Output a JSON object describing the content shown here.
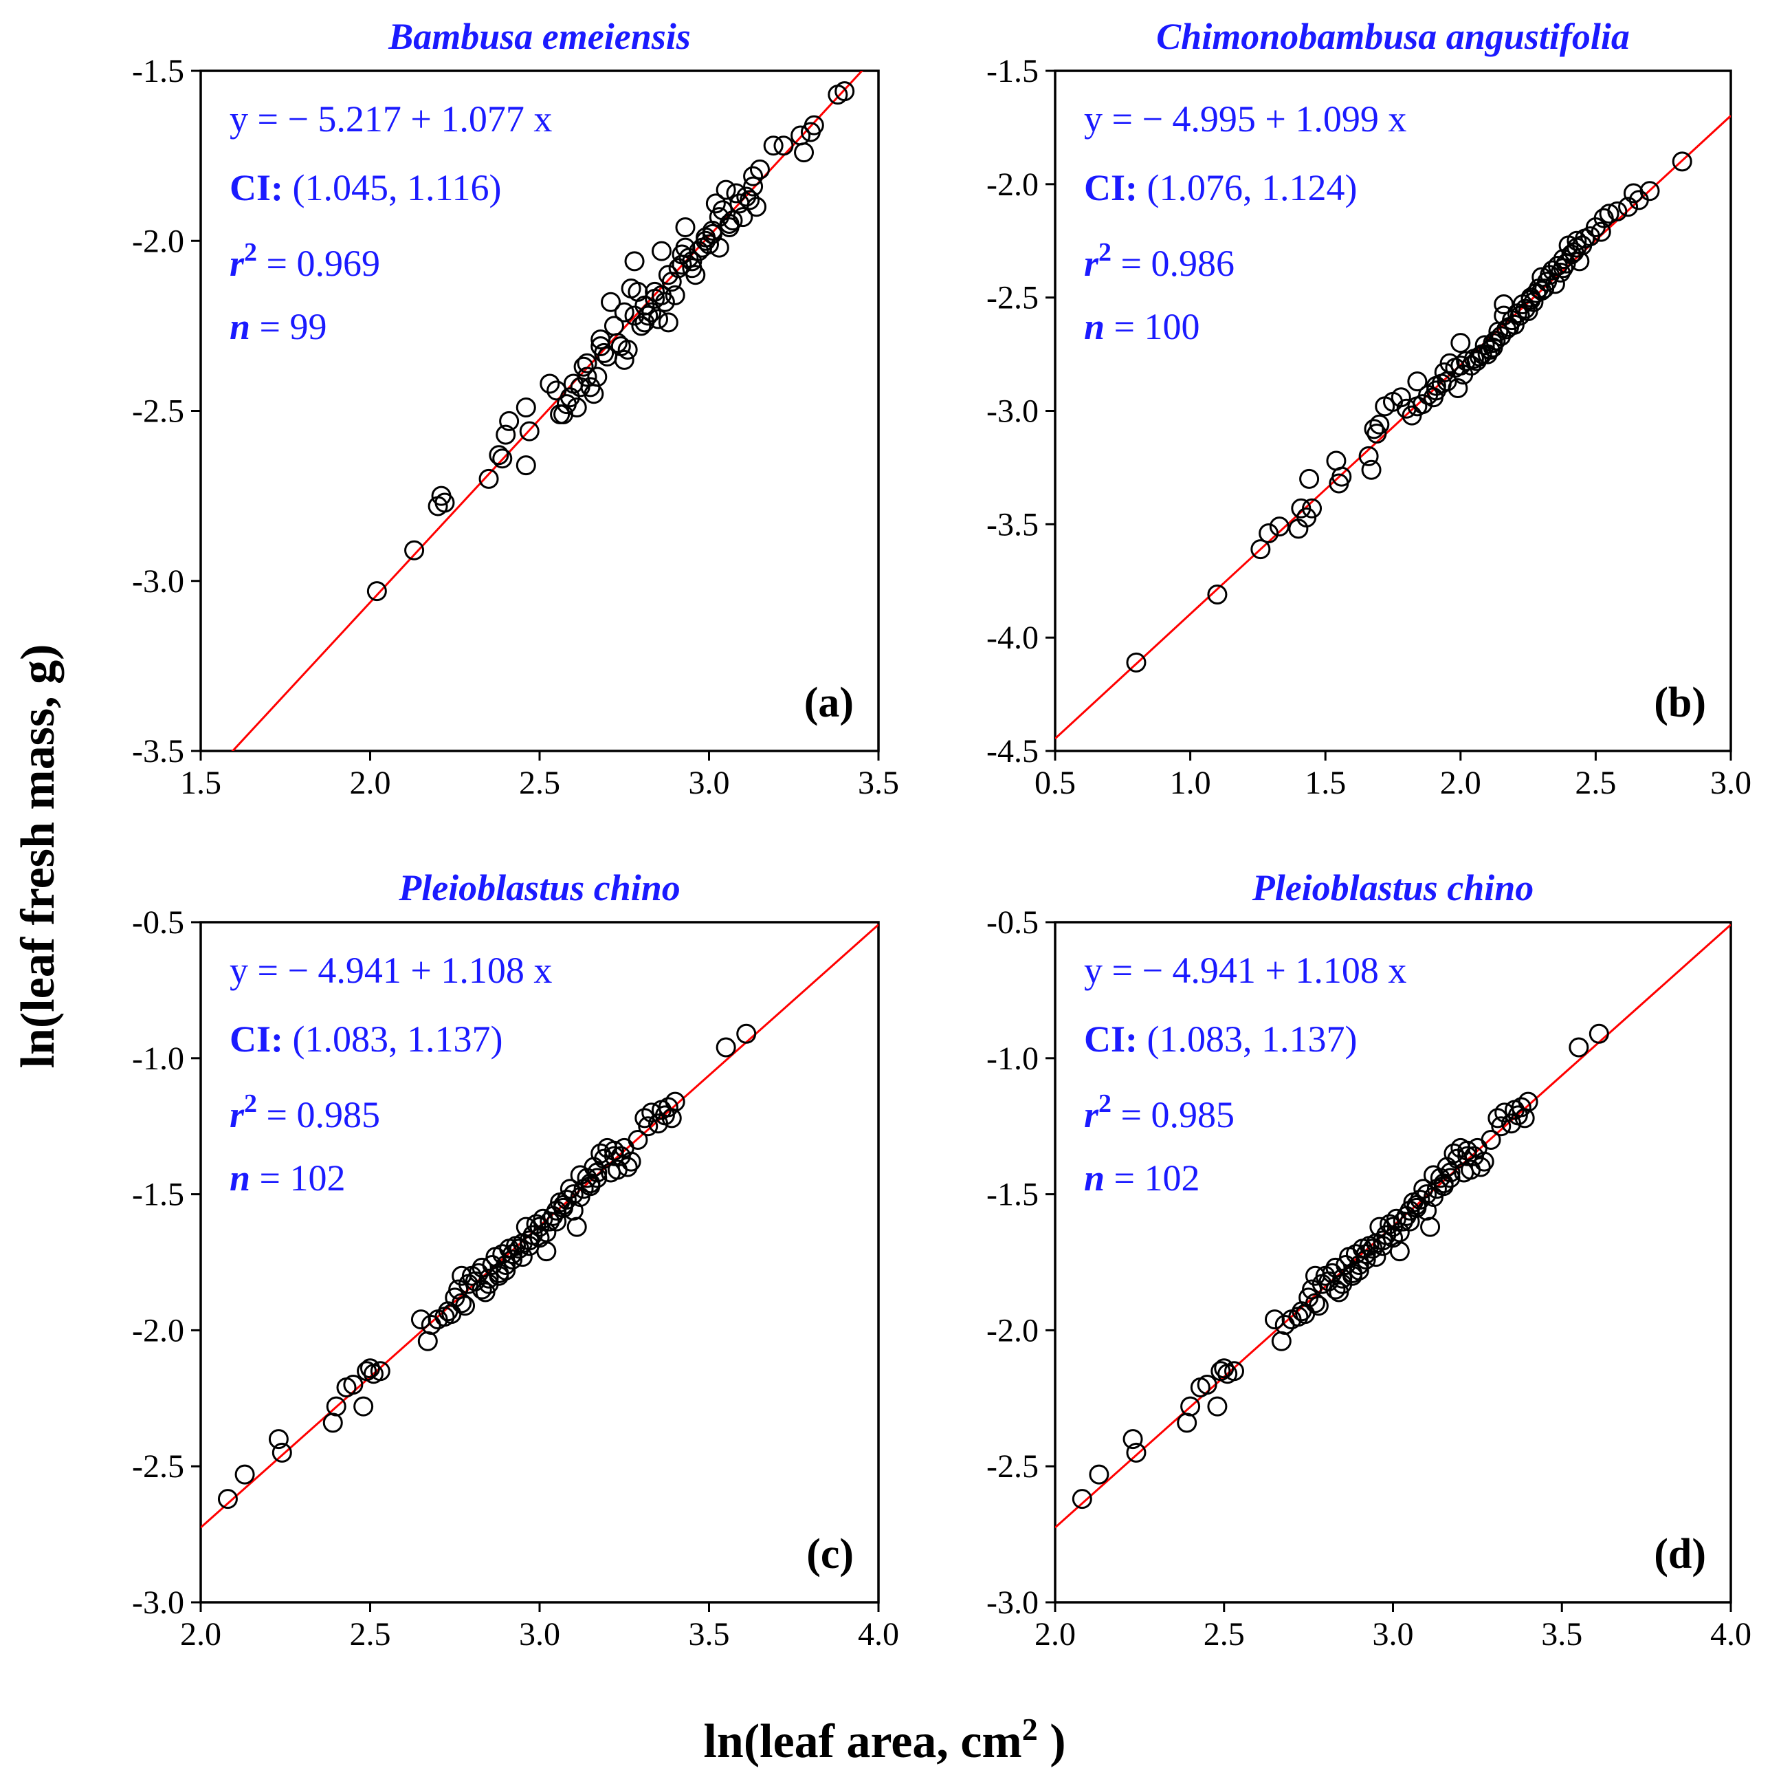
{
  "figure": {
    "ylabel": "ln(leaf fresh mass,  g)",
    "xlabel_main": "ln(leaf area,  cm",
    "xlabel_sup": "2",
    "xlabel_close": " )"
  },
  "chart_data": [
    {
      "type": "scatter",
      "tag": "(a)",
      "title": "Bambusa emeiensis",
      "xlim": [
        1.5,
        3.5
      ],
      "ylim": [
        -3.5,
        -1.5
      ],
      "xticks": [
        "1.5",
        "2.0",
        "2.5",
        "3.0",
        "3.5"
      ],
      "yticks": [
        "-3.5",
        "-3.0",
        "-2.5",
        "-2.0",
        "-1.5"
      ],
      "stats": {
        "eq": "y = − 5.217 + 1.077 x",
        "ci_label": "CI:",
        "ci": " (1.045, 1.116)",
        "r2_label": "r",
        "r2_sup": "2",
        "r2": " = 0.969",
        "n_label": "n",
        "n": " = 99"
      },
      "fit": {
        "intercept": -5.217,
        "slope": 1.077
      },
      "points": {
        "x": [
          2.02,
          2.13,
          2.2,
          2.21,
          2.22,
          2.35,
          2.38,
          2.39,
          2.4,
          2.41,
          2.46,
          2.46,
          2.47,
          2.53,
          2.55,
          2.56,
          2.57,
          2.58,
          2.59,
          2.6,
          2.61,
          2.62,
          2.63,
          2.64,
          2.65,
          2.66,
          2.67,
          2.68,
          2.69,
          2.7,
          2.72,
          2.73,
          2.74,
          2.75,
          2.76,
          2.77,
          2.78,
          2.79,
          2.8,
          2.81,
          2.82,
          2.83,
          2.84,
          2.85,
          2.86,
          2.87,
          2.88,
          2.89,
          2.9,
          2.91,
          2.92,
          2.93,
          2.94,
          2.95,
          2.96,
          2.97,
          2.98,
          2.99,
          3.0,
          3.01,
          3.02,
          3.03,
          3.04,
          3.05,
          3.06,
          3.07,
          3.08,
          3.09,
          3.1,
          3.11,
          3.12,
          3.13,
          3.14,
          3.15,
          3.19,
          3.22,
          3.27,
          3.28,
          3.3,
          3.31,
          3.38,
          3.4,
          2.78,
          2.86,
          2.93,
          2.71,
          2.64,
          2.68,
          2.75,
          2.81,
          2.88,
          2.95,
          3.01,
          3.06,
          2.84,
          2.92,
          3.03,
          3.13,
          2.99
        ],
        "y": [
          -3.03,
          -2.91,
          -2.78,
          -2.75,
          -2.77,
          -2.7,
          -2.63,
          -2.64,
          -2.57,
          -2.53,
          -2.49,
          -2.66,
          -2.56,
          -2.42,
          -2.44,
          -2.51,
          -2.51,
          -2.48,
          -2.46,
          -2.42,
          -2.49,
          -2.43,
          -2.37,
          -2.4,
          -2.43,
          -2.45,
          -2.4,
          -2.31,
          -2.33,
          -2.34,
          -2.25,
          -2.3,
          -2.31,
          -2.35,
          -2.32,
          -2.14,
          -2.22,
          -2.15,
          -2.25,
          -2.24,
          -2.22,
          -2.21,
          -2.17,
          -2.23,
          -2.16,
          -2.18,
          -2.24,
          -2.12,
          -2.16,
          -2.08,
          -2.07,
          -1.96,
          -2.05,
          -2.08,
          -2.1,
          -2.03,
          -2.02,
          -2.0,
          -2.01,
          -1.97,
          -1.89,
          -2.02,
          -1.91,
          -1.85,
          -1.96,
          -1.94,
          -1.86,
          -1.89,
          -1.93,
          -1.87,
          -1.88,
          -1.84,
          -1.9,
          -1.79,
          -1.72,
          -1.72,
          -1.69,
          -1.74,
          -1.68,
          -1.66,
          -1.57,
          -1.56,
          -2.06,
          -2.03,
          -2.02,
          -2.18,
          -2.36,
          -2.29,
          -2.21,
          -2.19,
          -2.1,
          -2.06,
          -1.98,
          -1.95,
          -2.15,
          -2.04,
          -1.93,
          -1.81,
          -1.99
        ]
      }
    },
    {
      "type": "scatter",
      "tag": "(b)",
      "title": "Chimonobambusa angustifolia",
      "xlim": [
        0.5,
        3.0
      ],
      "ylim": [
        -4.5,
        -1.5
      ],
      "xticks": [
        "0.5",
        "1.0",
        "1.5",
        "2.0",
        "2.5",
        "3.0"
      ],
      "yticks": [
        "-4.5",
        "-4.0",
        "-3.5",
        "-3.0",
        "-2.5",
        "-2.0",
        "-1.5"
      ],
      "stats": {
        "eq": "y = − 4.995 + 1.099 x",
        "ci_label": "CI:",
        "ci": " (1.076, 1.124)",
        "r2_label": "r",
        "r2_sup": "2",
        "r2": " = 0.986",
        "n_label": "n",
        "n": " = 100"
      },
      "fit": {
        "intercept": -4.995,
        "slope": 1.099
      },
      "points": {
        "x": [
          0.8,
          1.1,
          1.26,
          1.29,
          1.33,
          1.4,
          1.41,
          1.43,
          1.44,
          1.45,
          1.54,
          1.55,
          1.56,
          1.66,
          1.67,
          1.68,
          1.69,
          1.7,
          1.72,
          1.75,
          1.78,
          1.8,
          1.82,
          1.84,
          1.86,
          1.88,
          1.9,
          1.91,
          1.93,
          1.94,
          1.95,
          1.96,
          1.98,
          1.99,
          2.0,
          2.01,
          2.02,
          2.04,
          2.05,
          2.06,
          2.07,
          2.08,
          2.09,
          2.1,
          2.11,
          2.12,
          2.13,
          2.14,
          2.15,
          2.16,
          2.17,
          2.18,
          2.19,
          2.2,
          2.21,
          2.22,
          2.23,
          2.24,
          2.25,
          2.26,
          2.27,
          2.28,
          2.29,
          2.3,
          2.31,
          2.32,
          2.33,
          2.34,
          2.35,
          2.36,
          2.37,
          2.38,
          2.39,
          2.4,
          2.41,
          2.42,
          2.43,
          2.44,
          2.45,
          2.46,
          2.48,
          2.5,
          2.52,
          2.53,
          2.55,
          2.58,
          2.62,
          2.64,
          2.66,
          2.7,
          2.82,
          2.16,
          2.3,
          2.38,
          1.91,
          2.0,
          2.12,
          2.26,
          2.43,
          1.84
        ],
        "y": [
          -4.11,
          -3.81,
          -3.61,
          -3.54,
          -3.51,
          -3.52,
          -3.43,
          -3.47,
          -3.3,
          -3.43,
          -3.22,
          -3.32,
          -3.29,
          -3.2,
          -3.26,
          -3.08,
          -3.1,
          -3.06,
          -2.98,
          -2.96,
          -2.94,
          -2.99,
          -3.02,
          -2.87,
          -2.97,
          -2.93,
          -2.94,
          -2.91,
          -2.88,
          -2.83,
          -2.87,
          -2.79,
          -2.81,
          -2.9,
          -2.7,
          -2.84,
          -2.78,
          -2.8,
          -2.77,
          -2.78,
          -2.76,
          -2.75,
          -2.71,
          -2.75,
          -2.73,
          -2.7,
          -2.69,
          -2.65,
          -2.67,
          -2.53,
          -2.64,
          -2.63,
          -2.6,
          -2.62,
          -2.57,
          -2.58,
          -2.53,
          -2.55,
          -2.56,
          -2.5,
          -2.52,
          -2.48,
          -2.46,
          -2.41,
          -2.46,
          -2.43,
          -2.4,
          -2.38,
          -2.44,
          -2.36,
          -2.39,
          -2.33,
          -2.35,
          -2.27,
          -2.31,
          -2.3,
          -2.25,
          -2.34,
          -2.27,
          -2.24,
          -2.23,
          -2.19,
          -2.21,
          -2.15,
          -2.13,
          -2.12,
          -2.1,
          -2.04,
          -2.07,
          -2.03,
          -1.9,
          -2.58,
          -2.47,
          -2.37,
          -2.89,
          -2.8,
          -2.72,
          -2.51,
          -2.28,
          -2.98
        ]
      }
    },
    {
      "type": "scatter",
      "tag": "(c)",
      "title": "Pleioblastus chino",
      "xlim": [
        2.0,
        4.0
      ],
      "ylim": [
        -3.0,
        -0.5
      ],
      "xticks": [
        "2.0",
        "2.5",
        "3.0",
        "3.5",
        "4.0"
      ],
      "yticks": [
        "-3.0",
        "-2.5",
        "-2.0",
        "-1.5",
        "-1.0",
        "-0.5"
      ],
      "stats": {
        "eq": "y = − 4.941 + 1.108 x",
        "ci_label": "CI:",
        "ci": " (1.083, 1.137)",
        "r2_label": "r",
        "r2_sup": "2",
        "r2": " = 0.985",
        "n_label": "n",
        "n": " = 102"
      },
      "fit": {
        "intercept": -4.941,
        "slope": 1.108
      },
      "points": {
        "x": [
          2.08,
          2.13,
          2.23,
          2.24,
          2.39,
          2.4,
          2.43,
          2.45,
          2.48,
          2.49,
          2.5,
          2.51,
          2.53,
          2.65,
          2.67,
          2.68,
          2.7,
          2.72,
          2.73,
          2.74,
          2.75,
          2.76,
          2.77,
          2.78,
          2.79,
          2.8,
          2.81,
          2.82,
          2.83,
          2.84,
          2.85,
          2.86,
          2.87,
          2.88,
          2.89,
          2.9,
          2.91,
          2.92,
          2.93,
          2.94,
          2.95,
          2.96,
          2.97,
          2.98,
          2.99,
          3.0,
          3.01,
          3.02,
          3.03,
          3.04,
          3.05,
          3.06,
          3.07,
          3.08,
          3.09,
          3.1,
          3.11,
          3.12,
          3.13,
          3.14,
          3.15,
          3.16,
          3.17,
          3.18,
          3.19,
          3.2,
          3.21,
          3.22,
          3.23,
          3.24,
          3.25,
          3.26,
          3.27,
          3.29,
          3.31,
          3.32,
          3.33,
          3.35,
          3.36,
          3.37,
          3.38,
          3.39,
          3.4,
          3.55,
          3.61,
          2.77,
          2.83,
          2.88,
          2.92,
          2.97,
          3.02,
          3.07,
          3.12,
          3.17,
          3.22,
          2.85,
          2.9,
          2.95,
          3.0,
          3.05,
          3.1,
          3.15
        ],
        "y": [
          -2.62,
          -2.53,
          -2.4,
          -2.45,
          -2.34,
          -2.28,
          -2.21,
          -2.2,
          -2.28,
          -2.15,
          -2.14,
          -2.16,
          -2.15,
          -1.96,
          -2.04,
          -1.98,
          -1.96,
          -1.95,
          -1.93,
          -1.94,
          -1.88,
          -1.85,
          -1.8,
          -1.91,
          -1.83,
          -1.8,
          -1.82,
          -1.79,
          -1.77,
          -1.86,
          -1.81,
          -1.76,
          -1.73,
          -1.79,
          -1.72,
          -1.76,
          -1.7,
          -1.72,
          -1.69,
          -1.7,
          -1.68,
          -1.62,
          -1.67,
          -1.65,
          -1.61,
          -1.62,
          -1.59,
          -1.71,
          -1.6,
          -1.58,
          -1.56,
          -1.53,
          -1.54,
          -1.52,
          -1.48,
          -1.5,
          -1.62,
          -1.43,
          -1.48,
          -1.44,
          -1.46,
          -1.4,
          -1.44,
          -1.35,
          -1.37,
          -1.33,
          -1.42,
          -1.34,
          -1.41,
          -1.36,
          -1.33,
          -1.4,
          -1.38,
          -1.3,
          -1.22,
          -1.25,
          -1.2,
          -1.24,
          -1.19,
          -1.21,
          -1.18,
          -1.22,
          -1.16,
          -0.96,
          -0.91,
          -1.9,
          -1.85,
          -1.8,
          -1.74,
          -1.69,
          -1.64,
          -1.55,
          -1.51,
          -1.42,
          -1.36,
          -1.83,
          -1.78,
          -1.73,
          -1.66,
          -1.6,
          -1.56,
          -1.47
        ]
      }
    },
    {
      "type": "scatter",
      "tag": "(d)",
      "title": "Pleioblastus chino",
      "xlim": [
        2.0,
        4.0
      ],
      "ylim": [
        -3.0,
        -0.5
      ],
      "xticks": [
        "2.0",
        "2.5",
        "3.0",
        "3.5",
        "4.0"
      ],
      "yticks": [
        "-3.0",
        "-2.5",
        "-2.0",
        "-1.5",
        "-1.0",
        "-0.5"
      ],
      "stats": {
        "eq": "y = − 4.941 + 1.108 x",
        "ci_label": "CI:",
        "ci": " (1.083, 1.137)",
        "r2_label": "r",
        "r2_sup": "2",
        "r2": " = 0.985",
        "n_label": "n",
        "n": " = 102"
      },
      "fit": {
        "intercept": -4.941,
        "slope": 1.108
      },
      "points": {
        "x": [
          2.08,
          2.13,
          2.23,
          2.24,
          2.39,
          2.4,
          2.43,
          2.45,
          2.48,
          2.49,
          2.5,
          2.51,
          2.53,
          2.65,
          2.67,
          2.68,
          2.7,
          2.72,
          2.73,
          2.74,
          2.75,
          2.76,
          2.77,
          2.78,
          2.79,
          2.8,
          2.81,
          2.82,
          2.83,
          2.84,
          2.85,
          2.86,
          2.87,
          2.88,
          2.89,
          2.9,
          2.91,
          2.92,
          2.93,
          2.94,
          2.95,
          2.96,
          2.97,
          2.98,
          2.99,
          3.0,
          3.01,
          3.02,
          3.03,
          3.04,
          3.05,
          3.06,
          3.07,
          3.08,
          3.09,
          3.1,
          3.11,
          3.12,
          3.13,
          3.14,
          3.15,
          3.16,
          3.17,
          3.18,
          3.19,
          3.2,
          3.21,
          3.22,
          3.23,
          3.24,
          3.25,
          3.26,
          3.27,
          3.29,
          3.31,
          3.32,
          3.33,
          3.35,
          3.36,
          3.37,
          3.38,
          3.39,
          3.4,
          3.55,
          3.61,
          2.77,
          2.83,
          2.88,
          2.92,
          2.97,
          3.02,
          3.07,
          3.12,
          3.17,
          3.22,
          2.85,
          2.9,
          2.95,
          3.0,
          3.05,
          3.1,
          3.15
        ],
        "y": [
          -2.62,
          -2.53,
          -2.4,
          -2.45,
          -2.34,
          -2.28,
          -2.21,
          -2.2,
          -2.28,
          -2.15,
          -2.14,
          -2.16,
          -2.15,
          -1.96,
          -2.04,
          -1.98,
          -1.96,
          -1.95,
          -1.93,
          -1.94,
          -1.88,
          -1.85,
          -1.8,
          -1.91,
          -1.83,
          -1.8,
          -1.82,
          -1.79,
          -1.77,
          -1.86,
          -1.81,
          -1.76,
          -1.73,
          -1.79,
          -1.72,
          -1.76,
          -1.7,
          -1.72,
          -1.69,
          -1.7,
          -1.68,
          -1.62,
          -1.67,
          -1.65,
          -1.61,
          -1.62,
          -1.59,
          -1.71,
          -1.6,
          -1.58,
          -1.56,
          -1.53,
          -1.54,
          -1.52,
          -1.48,
          -1.5,
          -1.62,
          -1.43,
          -1.48,
          -1.44,
          -1.46,
          -1.4,
          -1.44,
          -1.35,
          -1.37,
          -1.33,
          -1.42,
          -1.34,
          -1.41,
          -1.36,
          -1.33,
          -1.4,
          -1.38,
          -1.3,
          -1.22,
          -1.25,
          -1.2,
          -1.24,
          -1.19,
          -1.21,
          -1.18,
          -1.22,
          -1.16,
          -0.96,
          -0.91,
          -1.9,
          -1.85,
          -1.8,
          -1.74,
          -1.69,
          -1.64,
          -1.55,
          -1.51,
          -1.42,
          -1.36,
          -1.83,
          -1.78,
          -1.73,
          -1.66,
          -1.6,
          -1.56,
          -1.47
        ]
      }
    }
  ]
}
